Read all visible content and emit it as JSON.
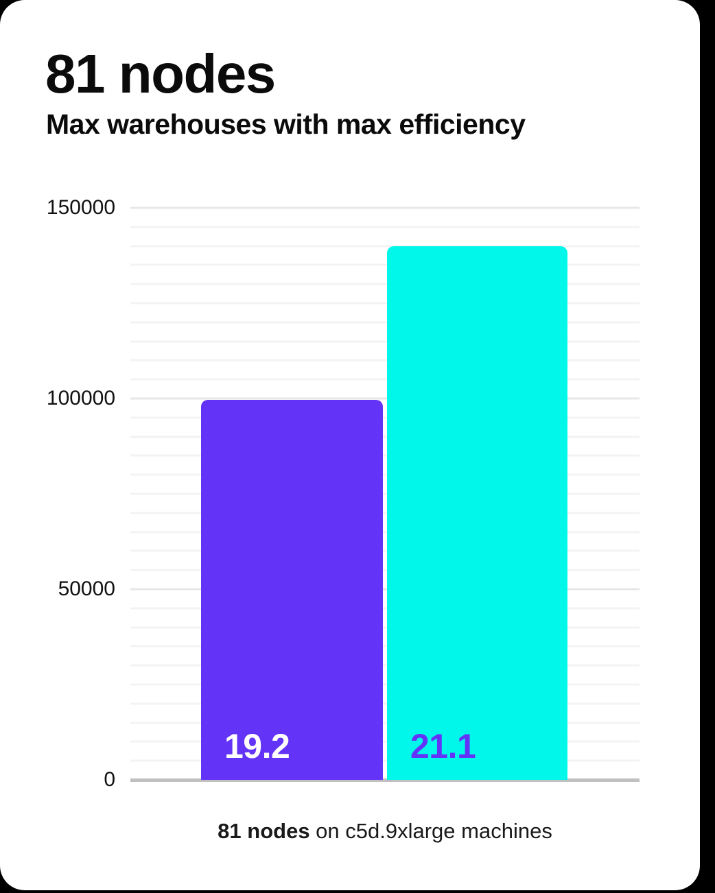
{
  "page": {
    "background": "#000000",
    "card_background": "#ffffff"
  },
  "header": {
    "title": "81 nodes",
    "subtitle": "Max warehouses with max efficiency"
  },
  "caption": {
    "bold": "81 nodes",
    "rest": " on c5d.9xlarge machines"
  },
  "chart_data": {
    "type": "bar",
    "title": "81 nodes",
    "subtitle": "Max warehouses with max efficiency",
    "categories": [
      "19.2",
      "21.1"
    ],
    "values": [
      99600,
      140000
    ],
    "bar_labels": [
      "19.2",
      "21.1"
    ],
    "bar_colors": [
      "#6333f7",
      "#00f7ea"
    ],
    "bar_label_colors": [
      "#ffffff",
      "#6333f7"
    ],
    "ylim": [
      0,
      150000
    ],
    "yticks": [
      0,
      50000,
      100000,
      150000
    ],
    "minor_grid_step": 5000,
    "major_grid_step": 50000,
    "grid": true,
    "legend": false,
    "xlabel": "",
    "ylabel": "",
    "caption": "81 nodes on c5d.9xlarge machines",
    "axis_line_color": "#c0c0c0",
    "major_grid_color": "#e7e7e7",
    "minor_grid_color": "#f3f3f3",
    "tick_label_color": "#111111"
  }
}
